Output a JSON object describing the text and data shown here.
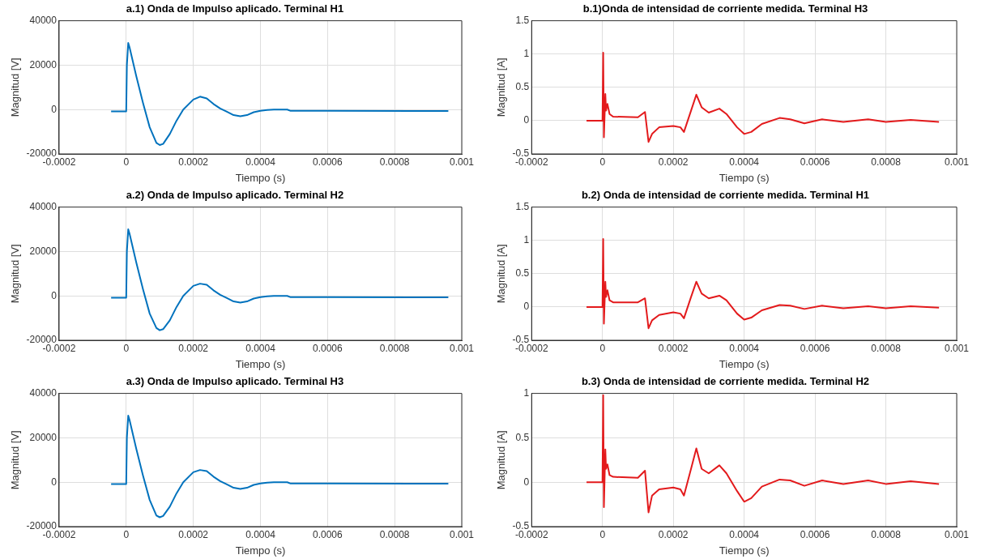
{
  "chart_data": [
    {
      "type": "line",
      "title": "a.1) Onda de Impulso aplicado. Terminal H1",
      "xlabel": "Tiempo (s)",
      "ylabel": "Magnitud [V]",
      "color": "#0072bd",
      "marker": "none",
      "grid": true,
      "xlim": [
        -0.0002,
        0.001
      ],
      "xticks": [
        -0.0002,
        0,
        0.0002,
        0.0004,
        0.0006,
        0.0008,
        0.001
      ],
      "ylim": [
        -20000,
        40000
      ],
      "yticks": [
        -20000,
        0,
        20000,
        40000
      ],
      "x": [
        -4.5e-05,
        0,
        2e-06,
        6e-06,
        1e-05,
        3e-05,
        5e-05,
        7e-05,
        9e-05,
        0.0001,
        0.00011,
        0.00013,
        0.00015,
        0.00017,
        0.0002,
        0.00022,
        0.00024,
        0.00026,
        0.00028,
        0.0003,
        0.00032,
        0.00034,
        0.00036,
        0.00038,
        0.0004,
        0.00042,
        0.00044,
        0.00048,
        0.00049,
        0.0006,
        0.00096
      ],
      "values": [
        -800,
        -800,
        20000,
        30000,
        28000,
        15000,
        3000,
        -8000,
        -15000,
        -16000,
        -15500,
        -11000,
        -5000,
        0,
        4500,
        5800,
        5000,
        2500,
        500,
        -1000,
        -2500,
        -3000,
        -2500,
        -1200,
        -600,
        -200,
        0,
        0,
        -600,
        -600,
        -700
      ]
    },
    {
      "type": "line",
      "title": "b.1)Onda de intensidad de corriente medida. Terminal H3",
      "xlabel": "Tiempo (s)",
      "ylabel": "Magnitud [A]",
      "color": "#e31a1c",
      "marker": "none",
      "grid": true,
      "xlim": [
        -0.0002,
        0.001
      ],
      "xticks": [
        -0.0002,
        0,
        0.0002,
        0.0004,
        0.0006,
        0.0008,
        0.001
      ],
      "ylim": [
        -0.5,
        1.5
      ],
      "yticks": [
        -0.5,
        0,
        0.5,
        1,
        1.5
      ],
      "x": [
        -4.5e-05,
        0,
        2e-06,
        4e-06,
        8e-06,
        1e-05,
        1.4e-05,
        2e-05,
        3e-05,
        0.0001,
        0.00012,
        0.00013,
        0.00014,
        0.00016,
        0.0002,
        0.00022,
        0.00023,
        0.00025,
        0.000265,
        0.00028,
        0.0003,
        0.00033,
        0.00035,
        0.00038,
        0.0004,
        0.00042,
        0.00045,
        0.0005,
        0.00053,
        0.00057,
        0.00062,
        0.00068,
        0.00075,
        0.0008,
        0.00087,
        0.00095
      ],
      "values": [
        0,
        0,
        1.02,
        -0.25,
        0.4,
        0.15,
        0.25,
        0.1,
        0.06,
        0.05,
        0.13,
        -0.32,
        -0.2,
        -0.1,
        -0.08,
        -0.1,
        -0.17,
        0.15,
        0.39,
        0.2,
        0.12,
        0.18,
        0.1,
        -0.1,
        -0.2,
        -0.17,
        -0.05,
        0.04,
        0.02,
        -0.04,
        0.02,
        -0.02,
        0.02,
        -0.02,
        0.01,
        -0.02
      ]
    },
    {
      "type": "line",
      "title": "a.2) Onda de Impulso aplicado. Terminal H2",
      "xlabel": "Tiempo (s)",
      "ylabel": "Magnitud [V]",
      "color": "#0072bd",
      "marker": "none",
      "grid": true,
      "xlim": [
        -0.0002,
        0.001
      ],
      "xticks": [
        -0.0002,
        0,
        0.0002,
        0.0004,
        0.0006,
        0.0008,
        0.001
      ],
      "ylim": [
        -20000,
        40000
      ],
      "yticks": [
        -20000,
        0,
        20000,
        40000
      ],
      "x": [
        -4.5e-05,
        0,
        2e-06,
        6e-06,
        1e-05,
        3e-05,
        5e-05,
        7e-05,
        9e-05,
        0.0001,
        0.00011,
        0.00013,
        0.00015,
        0.00017,
        0.0002,
        0.00022,
        0.00024,
        0.00026,
        0.00028,
        0.0003,
        0.00032,
        0.00034,
        0.00036,
        0.00038,
        0.0004,
        0.00042,
        0.00044,
        0.00048,
        0.00049,
        0.0006,
        0.00096
      ],
      "values": [
        -800,
        -800,
        20000,
        30000,
        28000,
        15000,
        3000,
        -8000,
        -14500,
        -15500,
        -15000,
        -11000,
        -5000,
        0,
        4500,
        5500,
        5000,
        2500,
        500,
        -1000,
        -2500,
        -3000,
        -2500,
        -1200,
        -600,
        -200,
        0,
        0,
        -600,
        -600,
        -700
      ]
    },
    {
      "type": "line",
      "title": "b.2) Onda de intensidad de corriente medida. Terminal H1",
      "xlabel": "Tiempo (s)",
      "ylabel": "Magnitud [A]",
      "color": "#e31a1c",
      "marker": "none",
      "grid": true,
      "xlim": [
        -0.0002,
        0.001
      ],
      "xticks": [
        -0.0002,
        0,
        0.0002,
        0.0004,
        0.0006,
        0.0008,
        0.001
      ],
      "ylim": [
        -0.5,
        1.5
      ],
      "yticks": [
        -0.5,
        0,
        0.5,
        1,
        1.5
      ],
      "x": [
        -4.5e-05,
        0,
        2e-06,
        4e-06,
        8e-06,
        1e-05,
        1.4e-05,
        2e-05,
        3e-05,
        0.0001,
        0.00012,
        0.00013,
        0.00014,
        0.00016,
        0.0002,
        0.00022,
        0.00023,
        0.00025,
        0.000265,
        0.00028,
        0.0003,
        0.00033,
        0.00035,
        0.00038,
        0.0004,
        0.00042,
        0.00045,
        0.0005,
        0.00053,
        0.00057,
        0.00062,
        0.00068,
        0.00075,
        0.0008,
        0.00087,
        0.00095
      ],
      "values": [
        0,
        0,
        1.02,
        -0.25,
        0.38,
        0.15,
        0.25,
        0.1,
        0.07,
        0.07,
        0.13,
        -0.32,
        -0.2,
        -0.12,
        -0.08,
        -0.1,
        -0.17,
        0.15,
        0.38,
        0.2,
        0.13,
        0.17,
        0.1,
        -0.1,
        -0.19,
        -0.16,
        -0.05,
        0.03,
        0.02,
        -0.03,
        0.02,
        -0.02,
        0.01,
        -0.02,
        0.01,
        -0.01
      ]
    },
    {
      "type": "line",
      "title": "a.3) Onda de Impulso aplicado. Terminal H3",
      "xlabel": "Tiempo (s)",
      "ylabel": "Magnitud [V]",
      "color": "#0072bd",
      "marker": "none",
      "grid": true,
      "xlim": [
        -0.0002,
        0.001
      ],
      "xticks": [
        -0.0002,
        0,
        0.0002,
        0.0004,
        0.0006,
        0.0008,
        0.001
      ],
      "ylim": [
        -20000,
        40000
      ],
      "yticks": [
        -20000,
        0,
        20000,
        40000
      ],
      "x": [
        -4.5e-05,
        0,
        2e-06,
        6e-06,
        1e-05,
        3e-05,
        5e-05,
        7e-05,
        9e-05,
        0.0001,
        0.00011,
        0.00013,
        0.00015,
        0.00017,
        0.0002,
        0.00022,
        0.00024,
        0.00026,
        0.00028,
        0.0003,
        0.00032,
        0.00034,
        0.00036,
        0.00038,
        0.0004,
        0.00042,
        0.00044,
        0.00048,
        0.00049,
        0.0006,
        0.00096
      ],
      "values": [
        -800,
        -800,
        20000,
        30000,
        28000,
        15000,
        3000,
        -8000,
        -15000,
        -15800,
        -15200,
        -11000,
        -5000,
        0,
        4500,
        5500,
        5000,
        2500,
        500,
        -1000,
        -2500,
        -3000,
        -2500,
        -1200,
        -600,
        -200,
        0,
        0,
        -600,
        -600,
        -700
      ]
    },
    {
      "type": "line",
      "title": "b.3) Onda de intensidad de corriente medida. Terminal H2",
      "xlabel": "Tiempo (s)",
      "ylabel": "Magnitud [A]",
      "color": "#e31a1c",
      "marker": "none",
      "grid": true,
      "xlim": [
        -0.0002,
        0.001
      ],
      "xticks": [
        -0.0002,
        0,
        0.0002,
        0.0004,
        0.0006,
        0.0008,
        0.001
      ],
      "ylim": [
        -0.5,
        1
      ],
      "yticks": [
        -0.5,
        0,
        0.5,
        1
      ],
      "x": [
        -4.5e-05,
        0,
        2e-06,
        4e-06,
        8e-06,
        1e-05,
        1.4e-05,
        2e-05,
        3e-05,
        0.0001,
        0.00012,
        0.00013,
        0.00014,
        0.00016,
        0.0002,
        0.00022,
        0.00023,
        0.00025,
        0.000265,
        0.00028,
        0.0003,
        0.00033,
        0.00035,
        0.00038,
        0.0004,
        0.00042,
        0.00045,
        0.0005,
        0.00053,
        0.00057,
        0.00062,
        0.00068,
        0.00075,
        0.0008,
        0.00087,
        0.00095
      ],
      "values": [
        0,
        0,
        0.98,
        -0.28,
        0.37,
        0.15,
        0.2,
        0.08,
        0.06,
        0.05,
        0.13,
        -0.34,
        -0.15,
        -0.08,
        -0.06,
        -0.08,
        -0.15,
        0.15,
        0.38,
        0.15,
        0.1,
        0.19,
        0.1,
        -0.1,
        -0.22,
        -0.18,
        -0.05,
        0.03,
        0.02,
        -0.04,
        0.02,
        -0.02,
        0.02,
        -0.02,
        0.01,
        -0.02
      ]
    }
  ]
}
